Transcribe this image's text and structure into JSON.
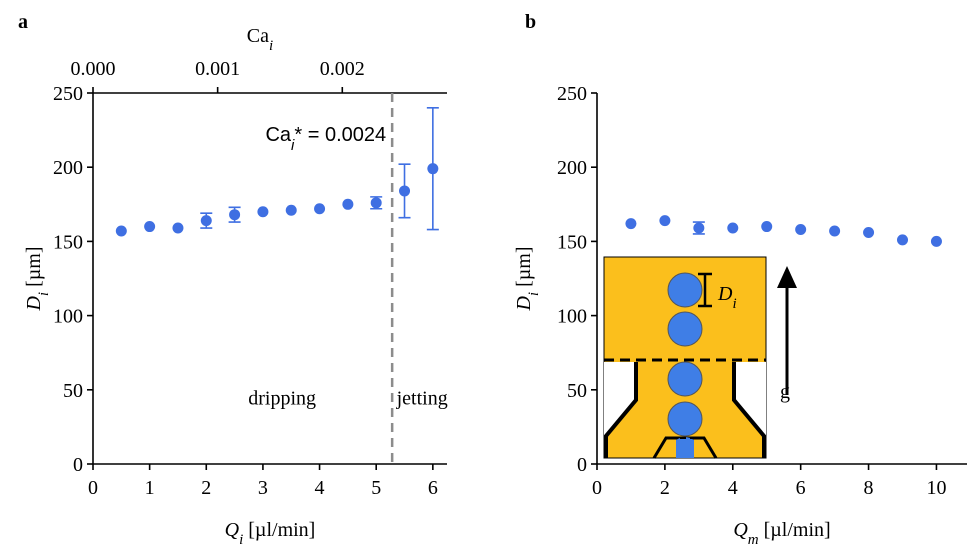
{
  "chart_data": [
    {
      "type": "scatter",
      "panel": "a",
      "x": [
        0.5,
        1,
        1.5,
        2,
        2.5,
        3,
        3.5,
        4,
        4.5,
        5,
        5.5,
        6
      ],
      "series": [
        {
          "color": "#3f6fe2",
          "values": [
            157,
            160,
            159,
            164,
            168,
            170,
            171,
            172,
            175,
            176,
            184,
            199
          ],
          "errors": [
            null,
            null,
            null,
            5,
            5,
            null,
            null,
            null,
            null,
            4,
            18,
            41
          ]
        }
      ],
      "xlim": [
        0,
        6.25
      ],
      "xticks": [
        0,
        1,
        2,
        3,
        4,
        5,
        6
      ],
      "ylim": [
        0,
        250
      ],
      "yticks": [
        0,
        50,
        100,
        150,
        200,
        250
      ],
      "xlabel": {
        "main": "Q",
        "sub": "i",
        "unit": " [µl/min]"
      },
      "ylabel": {
        "main": "D",
        "sub": "i",
        "unit": " [µm]"
      },
      "x2label": {
        "main": "Ca",
        "sub": "i"
      },
      "x2lim": [
        0,
        0.00284
      ],
      "x2ticks": [
        {
          "value": 0,
          "label": "0.000"
        },
        {
          "value": 0.001,
          "label": "0.001"
        },
        {
          "value": 0.002,
          "label": "0.002"
        }
      ],
      "vline": {
        "x2": 0.0024,
        "color": "#8c8c8c"
      },
      "threshold_label": {
        "main": "Ca",
        "sub": "i",
        "rest": "* = 0.0024"
      },
      "annotations": [
        "dripping",
        "jetting"
      ]
    },
    {
      "type": "scatter",
      "panel": "b",
      "x": [
        1,
        2,
        3,
        4,
        5,
        6,
        7,
        8,
        9,
        10
      ],
      "series": [
        {
          "color": "#3f6fe2",
          "values": [
            162,
            164,
            159,
            159,
            160,
            158,
            157,
            156,
            151,
            150
          ],
          "errors": [
            null,
            null,
            4,
            null,
            null,
            null,
            null,
            null,
            null,
            null
          ]
        }
      ],
      "xlim": [
        0,
        10.9
      ],
      "xticks": [
        0,
        2,
        4,
        6,
        8,
        10
      ],
      "ylim": [
        0,
        250
      ],
      "yticks": [
        0,
        50,
        100,
        150,
        200,
        250
      ],
      "xlabel": {
        "main": "Q",
        "sub": "m",
        "unit": " [µl/min]"
      },
      "ylabel": {
        "main": "D",
        "sub": "i",
        "unit": " [µm]"
      },
      "inset": {
        "size_label": {
          "main": "D",
          "sub": "i"
        },
        "gravity_label": "g"
      }
    }
  ]
}
